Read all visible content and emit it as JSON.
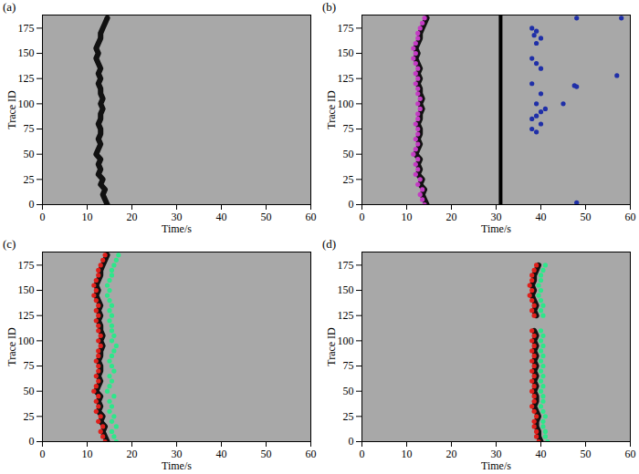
{
  "chart_data": [
    {
      "type": "scatter",
      "title": "(a)",
      "x_label": "Time/s",
      "y_label": "Trace ID",
      "xlim": [
        0,
        60
      ],
      "xticks": [
        0,
        10,
        20,
        30,
        40,
        50,
        60
      ],
      "ylim": [
        0,
        188
      ],
      "yticks": [
        0,
        25,
        50,
        75,
        100,
        125,
        150,
        175
      ],
      "grid": false,
      "y": [
        0,
        5,
        10,
        15,
        20,
        25,
        30,
        35,
        40,
        45,
        50,
        55,
        60,
        65,
        70,
        75,
        80,
        85,
        90,
        95,
        100,
        105,
        110,
        115,
        120,
        125,
        130,
        135,
        140,
        145,
        150,
        155,
        160,
        165,
        170,
        175,
        180,
        185
      ],
      "series": [
        {
          "type": "line",
          "color": "#111111",
          "values": [
            14.5,
            14,
            13.5,
            14,
            13,
            13.5,
            12.5,
            13,
            12.5,
            13,
            12,
            12.5,
            13,
            12.5,
            13,
            13,
            12.5,
            13,
            13,
            13.5,
            13,
            13.5,
            13,
            13,
            12.5,
            13,
            12.5,
            13,
            12.5,
            12,
            12.5,
            12,
            12.5,
            13,
            13,
            13.5,
            14,
            14.5
          ]
        }
      ]
    },
    {
      "type": "scatter",
      "title": "(b)",
      "x_label": "Time/s",
      "y_label": "Trace ID",
      "xlim": [
        0,
        60
      ],
      "xticks": [
        0,
        10,
        20,
        30,
        40,
        50,
        60
      ],
      "ylim": [
        0,
        188
      ],
      "yticks": [
        0,
        25,
        50,
        75,
        100,
        125,
        150,
        175
      ],
      "grid": false,
      "vertical_line": 31,
      "y": [
        0,
        5,
        10,
        15,
        20,
        25,
        30,
        35,
        40,
        45,
        50,
        55,
        60,
        65,
        70,
        75,
        80,
        85,
        90,
        95,
        100,
        105,
        110,
        115,
        120,
        125,
        130,
        135,
        140,
        145,
        150,
        155,
        160,
        165,
        170,
        175,
        180,
        185
      ],
      "series": [
        {
          "type": "line",
          "color": "#111111",
          "values": [
            14.5,
            14,
            13.5,
            14,
            13,
            13.5,
            12.5,
            13,
            12.5,
            13,
            12,
            12.5,
            13,
            12.5,
            13,
            13,
            12.5,
            13,
            13,
            13.5,
            13,
            13.5,
            13,
            13,
            12.5,
            13,
            12.5,
            13,
            12.5,
            12,
            12.5,
            12,
            12.5,
            13,
            13,
            13.5,
            14,
            14.5
          ]
        },
        {
          "type": "scatter",
          "color": "#c43bc4",
          "values": [
            14,
            13.5,
            13,
            13.5,
            12.5,
            13,
            12,
            12.5,
            12,
            12.5,
            11.5,
            12,
            12.5,
            12,
            12.5,
            12.5,
            12,
            12.5,
            12.5,
            13,
            12.5,
            13,
            12.5,
            12.5,
            12,
            12.5,
            12,
            12.5,
            12,
            11.5,
            12,
            11.5,
            12,
            12.5,
            12.5,
            13,
            13.5,
            14
          ]
        },
        {
          "type": "scatter",
          "color": "#1f2fa8",
          "x": [
            38,
            39,
            38.5,
            40,
            39,
            38,
            39,
            40,
            38,
            47.5,
            48,
            40,
            39,
            41,
            40,
            39,
            38,
            40,
            38,
            39,
            45,
            48,
            57,
            58,
            48
          ],
          "y": [
            175,
            172,
            168,
            165,
            160,
            145,
            140,
            135,
            120,
            118,
            117,
            110,
            100,
            95,
            92,
            88,
            85,
            80,
            75,
            72,
            100,
            2,
            128,
            185,
            185
          ]
        }
      ]
    },
    {
      "type": "scatter",
      "title": "(c)",
      "x_label": "Time/s",
      "y_label": "Trace ID",
      "xlim": [
        0,
        60
      ],
      "xticks": [
        0,
        10,
        20,
        30,
        40,
        50,
        60
      ],
      "ylim": [
        0,
        188
      ],
      "yticks": [
        0,
        25,
        50,
        75,
        100,
        125,
        150,
        175
      ],
      "grid": false,
      "y": [
        0,
        5,
        10,
        15,
        20,
        25,
        30,
        35,
        40,
        45,
        50,
        55,
        60,
        65,
        70,
        75,
        80,
        85,
        90,
        95,
        100,
        105,
        110,
        115,
        120,
        125,
        130,
        135,
        140,
        145,
        150,
        155,
        160,
        165,
        170,
        175,
        180,
        185
      ],
      "series": [
        {
          "type": "line",
          "color": "#111111",
          "values": [
            14.5,
            14,
            13.5,
            14,
            13,
            13.5,
            12.5,
            13,
            12.5,
            13,
            12,
            12.5,
            13,
            12.5,
            13,
            13,
            12.5,
            13,
            13,
            13.5,
            13,
            13.5,
            13,
            13,
            12.5,
            13,
            12.5,
            13,
            12.5,
            12,
            12.5,
            12,
            12.5,
            13,
            13,
            13.5,
            14,
            14.5
          ]
        },
        {
          "type": "scatter",
          "color": "#e0201b",
          "values": [
            14,
            13.5,
            13,
            13.5,
            12.5,
            13,
            12,
            12.5,
            12,
            12.5,
            11.5,
            12,
            12.5,
            12,
            12.5,
            12.5,
            12,
            12.5,
            12.5,
            13,
            12.5,
            13,
            12.5,
            12.5,
            12,
            12.5,
            12,
            12.5,
            12,
            11.5,
            12,
            11.5,
            12,
            12.5,
            12.5,
            13,
            13.5,
            14
          ]
        },
        {
          "type": "scatter",
          "color": "#2ee68a",
          "values": [
            16.5,
            16,
            15.5,
            16.5,
            15.5,
            16,
            15,
            15.5,
            15,
            16,
            14.5,
            15,
            15.5,
            15,
            16,
            15.5,
            15,
            15.5,
            16,
            16.5,
            15.5,
            16,
            15.5,
            15.5,
            15,
            15.5,
            15,
            15.5,
            15,
            14.5,
            15,
            14.5,
            15,
            15.5,
            15.5,
            16,
            16.5,
            17
          ]
        }
      ]
    },
    {
      "type": "scatter",
      "title": "(d)",
      "x_label": "Time/s",
      "y_label": "Trace ID",
      "xlim": [
        0,
        60
      ],
      "xticks": [
        0,
        10,
        20,
        30,
        40,
        50,
        60
      ],
      "ylim": [
        0,
        188
      ],
      "yticks": [
        0,
        25,
        50,
        75,
        100,
        125,
        150,
        175
      ],
      "grid": false,
      "y": [
        0,
        5,
        10,
        15,
        20,
        25,
        30,
        35,
        40,
        45,
        50,
        55,
        60,
        65,
        70,
        75,
        80,
        85,
        90,
        95,
        100,
        105,
        110,
        115,
        120,
        125,
        130,
        135,
        140,
        145,
        150,
        155,
        160,
        165,
        170,
        175,
        180,
        185
      ],
      "series": [
        {
          "type": "line",
          "color": "#111111",
          "values": [
            40,
            39.5,
            39.5,
            39,
            39,
            39.5,
            39,
            38.5,
            39,
            39,
            38.5,
            39,
            38.5,
            39,
            38.5,
            39,
            38.5,
            39,
            38.5,
            39,
            38.5,
            39,
            38.5,
            null,
            null,
            39,
            38.5,
            39,
            38.5,
            38,
            38.5,
            38,
            38.5,
            38.5,
            39,
            39.5,
            null,
            null
          ]
        },
        {
          "type": "scatter",
          "color": "#e0201b",
          "values": [
            39.5,
            39,
            39,
            38.5,
            38.5,
            39,
            38.5,
            38,
            38.5,
            38.5,
            38,
            38.5,
            38,
            38.5,
            38,
            38.5,
            38,
            38.5,
            38,
            38.5,
            38,
            38.5,
            38,
            null,
            null,
            38.5,
            38,
            38.5,
            38,
            37.5,
            38,
            37.5,
            38,
            38,
            38.5,
            39,
            null,
            null
          ]
        },
        {
          "type": "scatter",
          "color": "#2ee68a",
          "values": [
            41.5,
            41,
            41,
            40.5,
            40.5,
            41,
            40.5,
            40,
            40.5,
            40.5,
            40,
            40.5,
            40,
            40.5,
            40,
            40.5,
            40,
            40.5,
            40,
            40.5,
            40,
            40.5,
            40,
            null,
            null,
            40.5,
            40,
            40.5,
            40,
            39.5,
            40,
            39.5,
            40,
            40,
            40.5,
            41,
            null,
            null
          ]
        }
      ]
    }
  ]
}
